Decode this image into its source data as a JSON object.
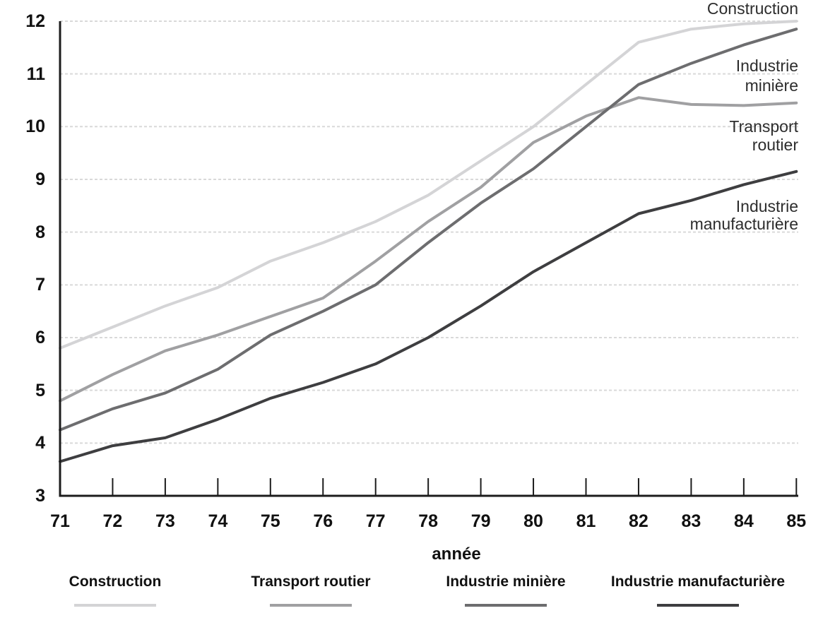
{
  "chart_data": {
    "type": "line",
    "title": "",
    "xlabel": "année",
    "ylabel": "",
    "x": [
      71,
      72,
      73,
      74,
      75,
      76,
      77,
      78,
      79,
      80,
      81,
      82,
      83,
      84,
      85
    ],
    "x_tick_labels": [
      "71",
      "72",
      "73",
      "74",
      "75",
      "76",
      "77",
      "78",
      "79",
      "80",
      "81",
      "82",
      "83",
      "84",
      "85"
    ],
    "ylim": [
      3,
      12
    ],
    "yticks": [
      12,
      11,
      10,
      9,
      8,
      7,
      6,
      5,
      4,
      3
    ],
    "ytick_labels": [
      "12",
      "11",
      "10",
      "9",
      "8",
      "7",
      "6",
      "5",
      "4",
      "3"
    ],
    "grid": "horizontal-dashed",
    "grid_color": "#d9d9d9",
    "axis_color": "#1c1c1c",
    "legend_position": "bottom",
    "series": [
      {
        "name": "Construction",
        "color": "#d4d4d6",
        "values": [
          5.8,
          6.2,
          6.6,
          6.95,
          7.45,
          7.8,
          8.2,
          8.7,
          9.35,
          10.0,
          10.8,
          11.6,
          11.85,
          11.95,
          12.0
        ]
      },
      {
        "name": "Transport routier",
        "color": "#a0a0a2",
        "values": [
          4.8,
          5.3,
          5.75,
          6.05,
          6.4,
          6.75,
          7.45,
          8.2,
          8.85,
          9.7,
          10.2,
          10.55,
          10.42,
          10.4,
          10.45
        ]
      },
      {
        "name": "Industrie minière",
        "color": "#6d6d6f",
        "values": [
          4.25,
          4.65,
          4.95,
          5.4,
          6.05,
          6.5,
          7.0,
          7.8,
          8.55,
          9.2,
          10.0,
          10.8,
          11.2,
          11.55,
          11.85
        ]
      },
      {
        "name": "Industrie manufacturière",
        "color": "#3e3e40",
        "values": [
          3.65,
          3.95,
          4.1,
          4.45,
          4.85,
          5.15,
          5.5,
          6.0,
          6.6,
          7.25,
          7.8,
          8.35,
          8.6,
          8.9,
          9.15
        ]
      }
    ]
  },
  "line_labels": {
    "construction": "Construction",
    "miniere_1": "Industrie",
    "miniere_2": "minière",
    "transport_1": "Transport",
    "transport_2": "routier",
    "manufacturiere_1": "Industrie",
    "manufacturiere_2": "manufacturière"
  },
  "legend": {
    "items": [
      {
        "label": "Construction",
        "color": "#d4d4d6"
      },
      {
        "label": "Transport routier",
        "color": "#a0a0a2"
      },
      {
        "label": "Industrie minière",
        "color": "#6d6d6f"
      },
      {
        "label": "Industrie manufacturière",
        "color": "#3e3e40"
      }
    ]
  }
}
